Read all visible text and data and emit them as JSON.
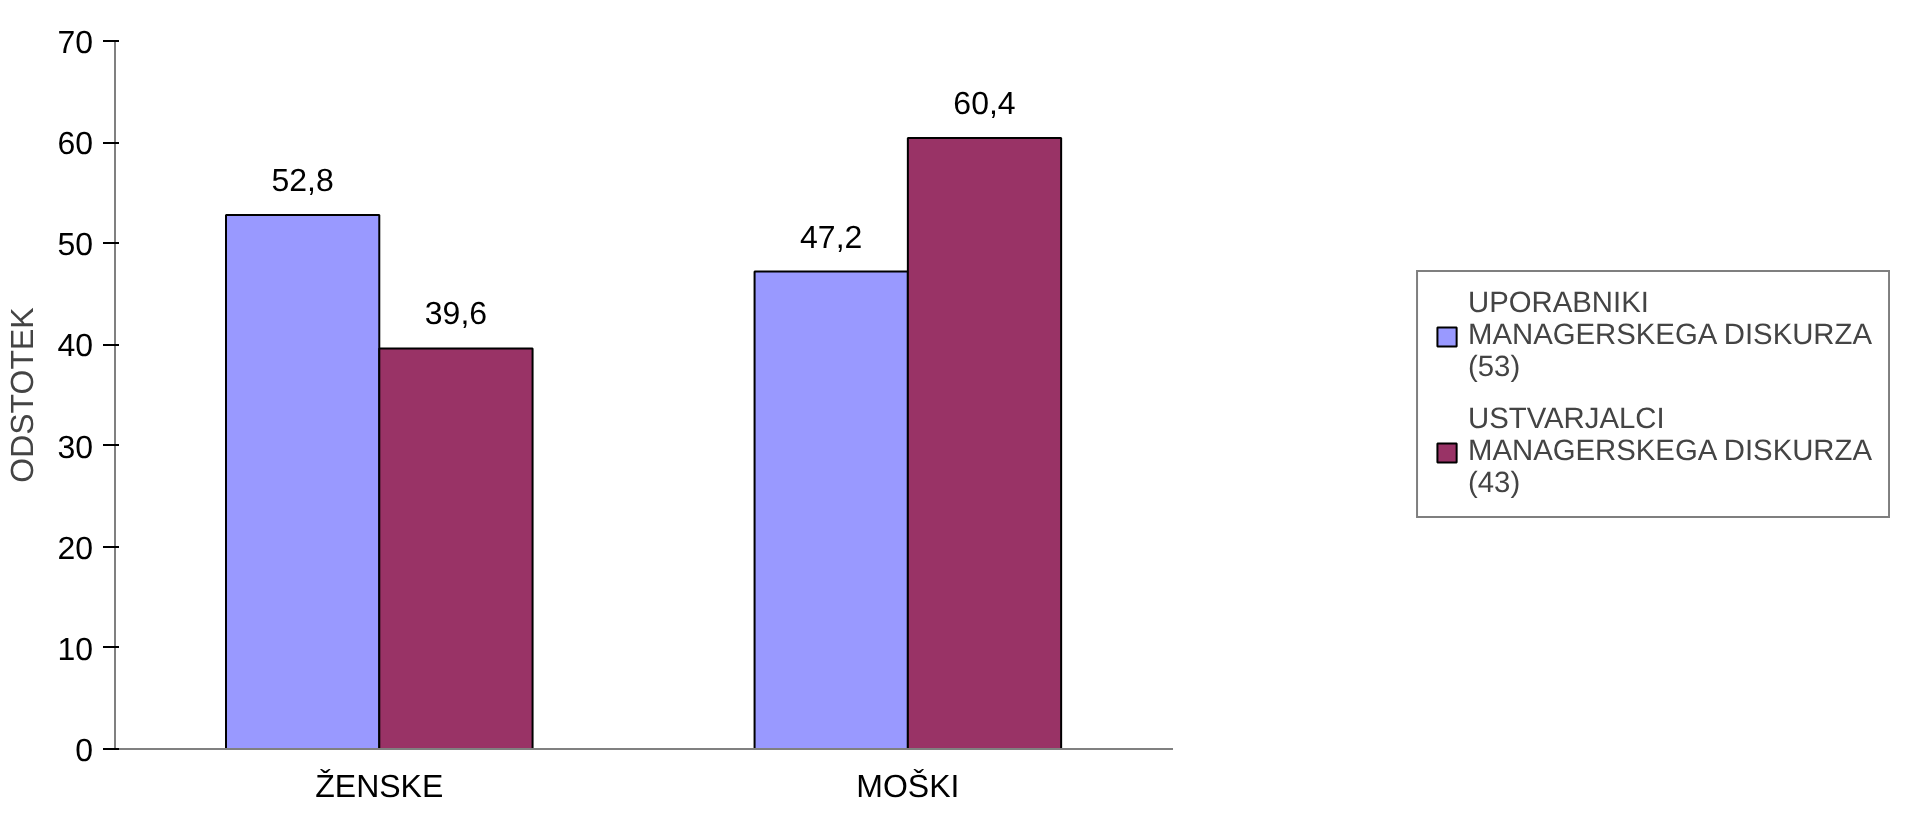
{
  "chart_data": {
    "type": "bar",
    "ylabel": "ODSTOTEK",
    "categories": [
      "ŽENSKE",
      "MOŠKI"
    ],
    "series": [
      {
        "name": "UPORABNIKI MANAGERSKEGA DISKURZA (53)",
        "color": "#9999ff",
        "values": [
          52.8,
          47.2
        ],
        "value_labels": [
          "52,8",
          "47,2"
        ]
      },
      {
        "name": "USTVARJALCI MANAGERSKEGA DISKURZA (43)",
        "color": "#993366",
        "values": [
          39.6,
          60.4
        ],
        "value_labels": [
          "39,6",
          "60,4"
        ]
      }
    ],
    "ylim": [
      0,
      70
    ],
    "yticks": [
      0,
      10,
      20,
      30,
      40,
      50,
      60,
      70
    ],
    "grid": false,
    "legend": "right"
  }
}
